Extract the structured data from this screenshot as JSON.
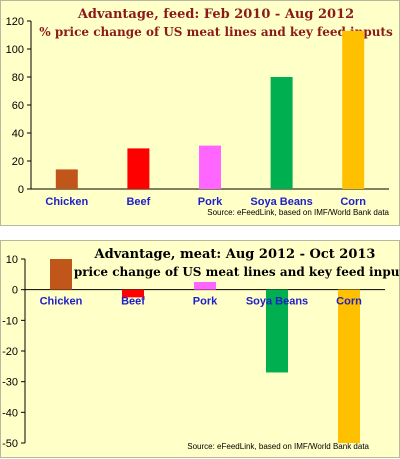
{
  "colors": {
    "panel_bg": "#ffffc8",
    "title": "#8b1a1a",
    "category_label": "#2020c8",
    "axis": "#000000"
  },
  "chart_data": [
    {
      "type": "bar",
      "title": "Advantage, feed: Feb 2010 - Aug 2012",
      "subtitle": "% price change of US meat lines and key feed inputs",
      "source": "Source: eFeedLink, based on IMF/World Bank data",
      "categories": [
        "Chicken",
        "Beef",
        "Pork",
        "Soya Beans",
        "Corn"
      ],
      "values": [
        14,
        29,
        31,
        80,
        113
      ],
      "bar_colors": [
        "#c0561a",
        "#ff0000",
        "#ff66ff",
        "#00b050",
        "#ffc000"
      ],
      "ylim": [
        0,
        120
      ],
      "yticks": [
        0,
        20,
        40,
        60,
        80,
        100,
        120
      ],
      "grid": false
    },
    {
      "type": "bar",
      "title": "Advantage, meat: Aug 2012 - Oct 2013",
      "subtitle": "% price change of US meat lines and  key feed inputs",
      "source": "Source: eFeedLink, based on IMF/World Bank data",
      "categories": [
        "Chicken",
        "Beef",
        "Pork",
        "Soya Beans",
        "Corn"
      ],
      "values": [
        10,
        -2.5,
        2.5,
        -27,
        -50
      ],
      "bar_colors": [
        "#c0561a",
        "#ff0000",
        "#ff66ff",
        "#00b050",
        "#ffc000"
      ],
      "ylim": [
        -50,
        10
      ],
      "yticks": [
        -50,
        -40,
        -30,
        -20,
        -10,
        0,
        10
      ],
      "grid": false
    }
  ]
}
